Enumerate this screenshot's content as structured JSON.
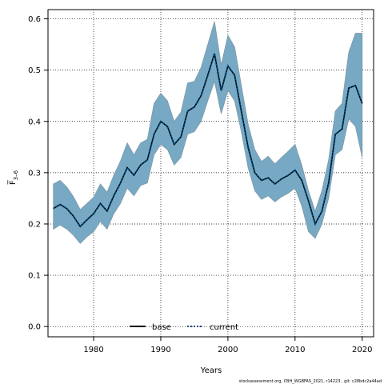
{
  "chart_data": {
    "type": "line",
    "title": "",
    "xlabel": "Years",
    "ylabel": "F̅ 3–6",
    "ylabel_main": "F̅",
    "ylabel_sub": "3–6",
    "xlim": [
      1973.2,
      2021.7
    ],
    "ylim": [
      -0.02,
      0.618
    ],
    "xticks": [
      1980,
      1990,
      2000,
      2010,
      2020
    ],
    "xtick_labels": [
      "1980",
      "1990",
      "2000",
      "2010",
      "2020"
    ],
    "yticks": [
      0.0,
      0.1,
      0.2,
      0.3,
      0.4,
      0.5,
      0.6
    ],
    "ytick_labels": [
      "0.0",
      "0.1",
      "0.2",
      "0.3",
      "0.4",
      "0.5",
      "0.6"
    ],
    "grid": true,
    "legend_position": "bottom-left",
    "x": [
      1974,
      1975,
      1976,
      1977,
      1978,
      1979,
      1980,
      1981,
      1982,
      1983,
      1984,
      1985,
      1986,
      1987,
      1988,
      1989,
      1990,
      1991,
      1992,
      1993,
      1994,
      1995,
      1996,
      1997,
      1998,
      1999,
      2000,
      2001,
      2002,
      2003,
      2004,
      2005,
      2006,
      2007,
      2008,
      2009,
      2010,
      2011,
      2012,
      2013,
      2014,
      2015,
      2016,
      2017,
      2018,
      2019,
      2020
    ],
    "series": [
      {
        "name": "base",
        "color": "#000000",
        "line_style": "solid",
        "values": [
          0.23,
          0.238,
          0.23,
          0.215,
          0.195,
          0.208,
          0.22,
          0.24,
          0.225,
          0.255,
          0.28,
          0.31,
          0.295,
          0.315,
          0.325,
          0.375,
          0.4,
          0.39,
          0.355,
          0.37,
          0.42,
          0.428,
          0.45,
          0.49,
          0.532,
          0.46,
          0.508,
          0.49,
          0.42,
          0.35,
          0.3,
          0.285,
          0.29,
          0.278,
          0.288,
          0.295,
          0.305,
          0.285,
          0.245,
          0.2,
          0.225,
          0.28,
          0.375,
          0.385,
          0.465,
          0.47,
          0.435
        ]
      },
      {
        "name": "current",
        "color": "#004c80",
        "line_style": "dotted",
        "values": [
          0.23,
          0.238,
          0.23,
          0.215,
          0.195,
          0.208,
          0.22,
          0.24,
          0.225,
          0.255,
          0.28,
          0.31,
          0.295,
          0.315,
          0.325,
          0.375,
          0.4,
          0.39,
          0.355,
          0.37,
          0.42,
          0.428,
          0.45,
          0.49,
          0.532,
          0.46,
          0.508,
          0.49,
          0.42,
          0.35,
          0.3,
          0.285,
          0.29,
          0.278,
          0.288,
          0.295,
          0.305,
          0.285,
          0.245,
          0.2,
          0.225,
          0.28,
          0.375,
          0.385,
          0.465,
          0.47,
          0.435
        ]
      }
    ],
    "confidence_band": {
      "color": "#77a9c4",
      "lower": [
        0.19,
        0.198,
        0.19,
        0.178,
        0.162,
        0.175,
        0.185,
        0.205,
        0.19,
        0.22,
        0.24,
        0.27,
        0.255,
        0.275,
        0.28,
        0.335,
        0.355,
        0.345,
        0.315,
        0.33,
        0.375,
        0.38,
        0.4,
        0.44,
        0.478,
        0.415,
        0.46,
        0.44,
        0.38,
        0.31,
        0.265,
        0.248,
        0.255,
        0.243,
        0.253,
        0.26,
        0.27,
        0.235,
        0.185,
        0.172,
        0.2,
        0.25,
        0.335,
        0.345,
        0.405,
        0.39,
        0.33
      ],
      "upper": [
        0.278,
        0.285,
        0.272,
        0.253,
        0.228,
        0.24,
        0.252,
        0.278,
        0.262,
        0.295,
        0.323,
        0.358,
        0.335,
        0.358,
        0.365,
        0.435,
        0.455,
        0.44,
        0.4,
        0.418,
        0.475,
        0.478,
        0.505,
        0.55,
        0.595,
        0.51,
        0.568,
        0.545,
        0.47,
        0.395,
        0.345,
        0.322,
        0.332,
        0.317,
        0.33,
        0.342,
        0.355,
        0.315,
        0.265,
        0.225,
        0.265,
        0.325,
        0.42,
        0.435,
        0.535,
        0.572,
        0.572
      ]
    }
  },
  "footer": "stockassessment.org, CBH_WGBFAS_2021, r14223 ,  git: c28bdc2a44ad"
}
